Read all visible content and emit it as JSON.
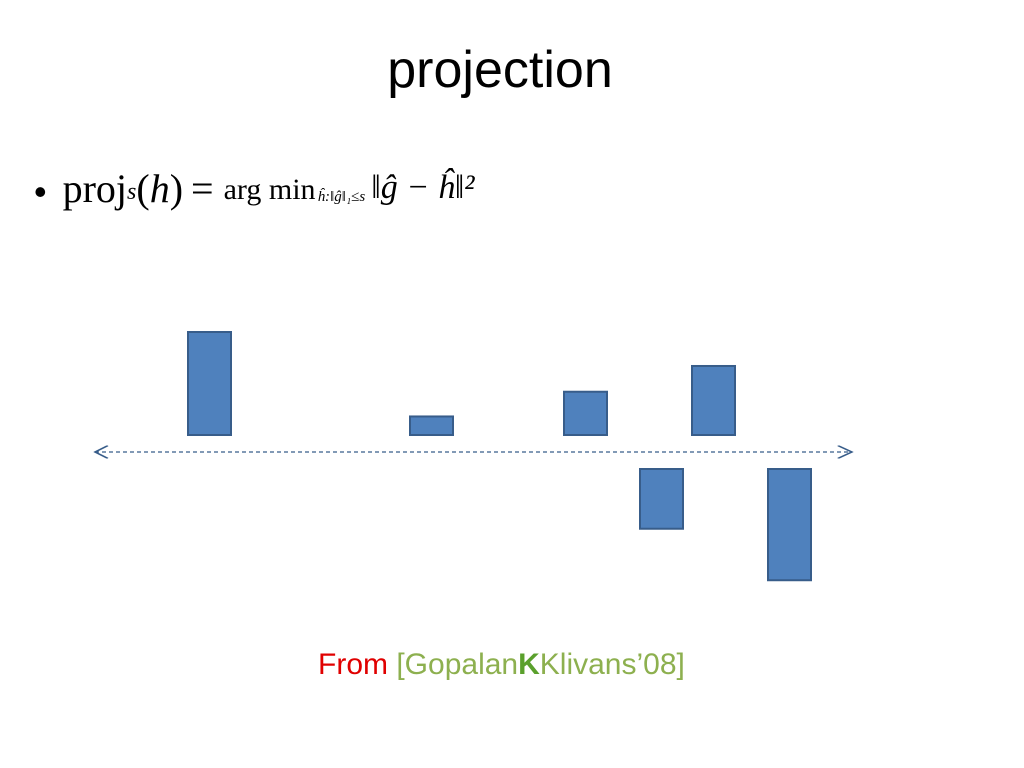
{
  "title": "projection",
  "bullet": {
    "symbol": "•",
    "proj": "proj",
    "subscript": "s",
    "open_paren": "(",
    "arg": "h",
    "close_paren": ")",
    "equals": "=",
    "argmin": "arg min",
    "argmin_subscript": "ĥ:‖ĝ‖₁≤s",
    "norm_expression": "‖ĝ − ĥ‖²"
  },
  "bars": {
    "values": [
      1.0,
      0.18,
      0.42,
      0.67,
      -0.58,
      -1.08
    ]
  },
  "colors": {
    "bar_fill": "#4f81bd",
    "bar_stroke": "#385d8a",
    "axis": "#385d8a"
  },
  "footer": {
    "from": "From",
    "cite_open": "[Gopalan",
    "cite_bold": "K",
    "cite_close": "Klivans’08]"
  }
}
